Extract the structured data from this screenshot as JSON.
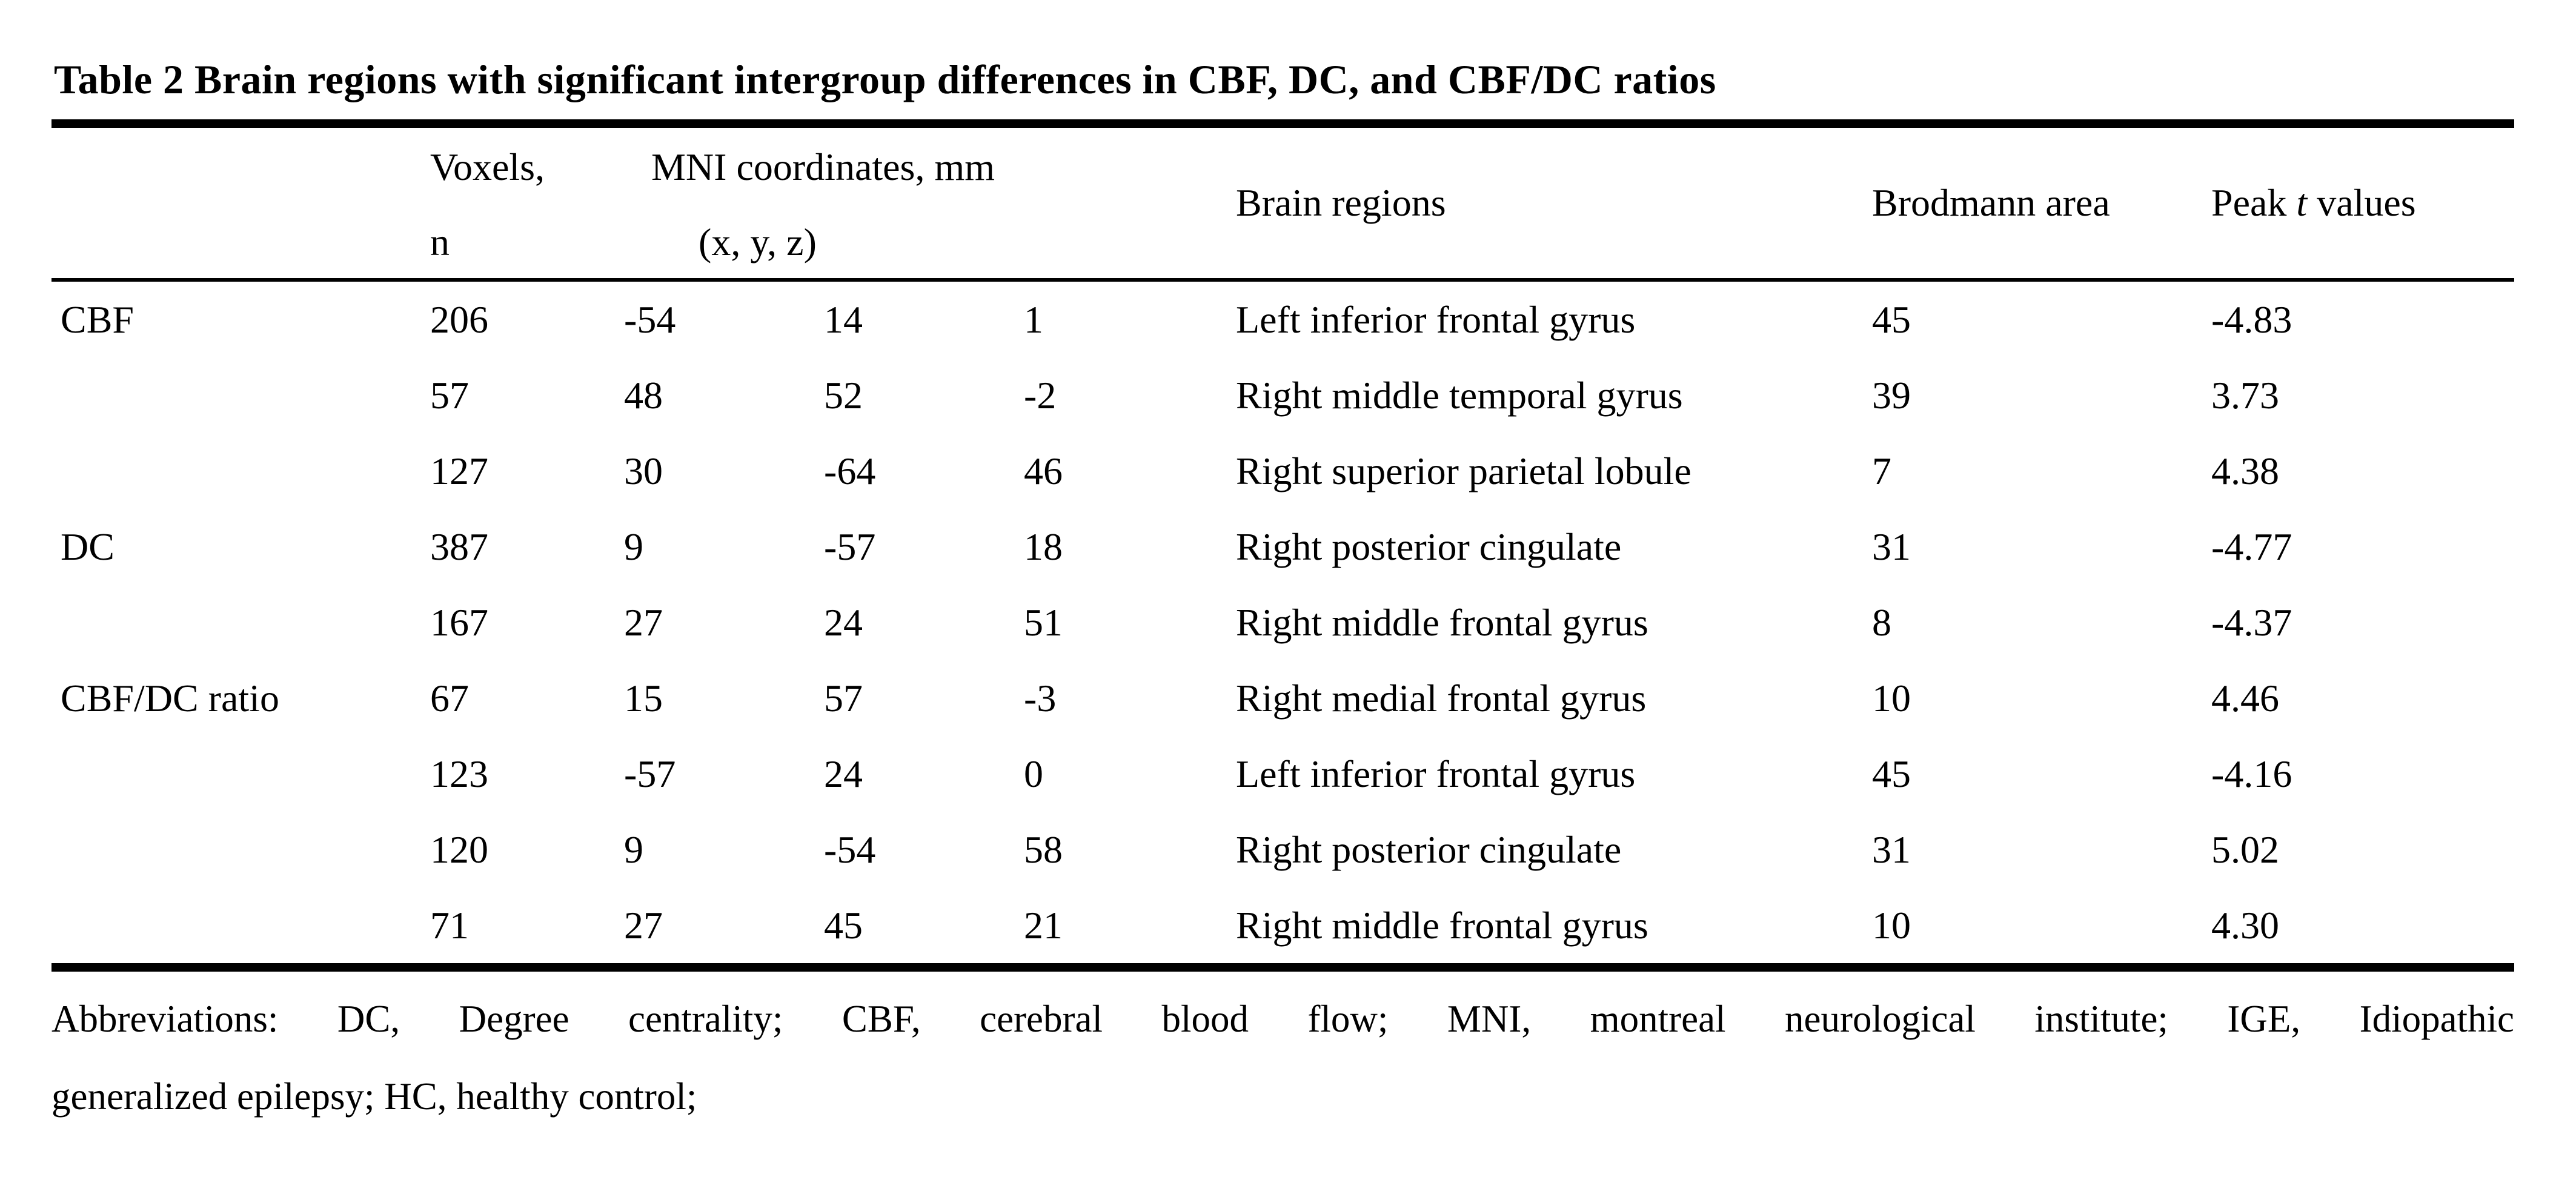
{
  "title": "Table 2 Brain regions with significant intergroup differences in CBF, DC, and CBF/DC ratios",
  "header": {
    "voxels_line1": "Voxels,",
    "voxels_line2": "n",
    "mni_line1": "MNI coordinates, mm",
    "mni_line2": "(x, y, z)",
    "brain_regions": "Brain regions",
    "brodmann": "Brodmann area",
    "peak_pre": "Peak ",
    "peak_italic": "t",
    "peak_post": " values"
  },
  "rows": [
    {
      "group": "CBF",
      "voxels": "206",
      "x": "-54",
      "y": "14",
      "z": "1",
      "region": "Left inferior frontal gyrus",
      "brodmann": "45",
      "peak_t": "-4.83"
    },
    {
      "group": "",
      "voxels": "57",
      "x": "48",
      "y": "52",
      "z": "-2",
      "region": "Right middle temporal gyrus",
      "brodmann": "39",
      "peak_t": "3.73"
    },
    {
      "group": "",
      "voxels": "127",
      "x": "30",
      "y": "-64",
      "z": "46",
      "region": "Right superior parietal lobule",
      "brodmann": "7",
      "peak_t": "4.38"
    },
    {
      "group": "DC",
      "voxels": "387",
      "x": "9",
      "y": "-57",
      "z": "18",
      "region": "Right posterior cingulate",
      "brodmann": "31",
      "peak_t": "-4.77"
    },
    {
      "group": "",
      "voxels": "167",
      "x": "27",
      "y": "24",
      "z": "51",
      "region": "Right middle frontal gyrus",
      "brodmann": "8",
      "peak_t": "-4.37"
    },
    {
      "group": "CBF/DC ratio",
      "voxels": "67",
      "x": "15",
      "y": "57",
      "z": "-3",
      "region": "Right medial frontal gyrus",
      "brodmann": "10",
      "peak_t": "4.46"
    },
    {
      "group": "",
      "voxels": "123",
      "x": "-57",
      "y": "24",
      "z": "0",
      "region": "Left inferior frontal gyrus",
      "brodmann": "45",
      "peak_t": "-4.16"
    },
    {
      "group": "",
      "voxels": "120",
      "x": "9",
      "y": "-54",
      "z": "58",
      "region": "Right posterior cingulate",
      "brodmann": "31",
      "peak_t": "5.02"
    },
    {
      "group": "",
      "voxels": "71",
      "x": "27",
      "y": "45",
      "z": "21",
      "region": "Right middle frontal gyrus",
      "brodmann": "10",
      "peak_t": "4.30"
    }
  ],
  "footer": {
    "line1": "Abbreviations: DC, Degree centrality; CBF, cerebral blood flow; MNI, montreal neurological institute; IGE, Idiopathic",
    "line2": "generalized epilepsy; HC, healthy control;"
  },
  "colors": {
    "text": "#000000",
    "background": "#ffffff",
    "rule": "#000000"
  }
}
